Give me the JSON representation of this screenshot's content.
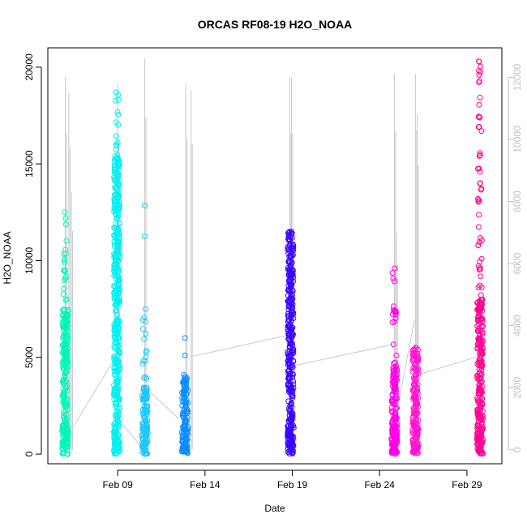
{
  "chart_data": {
    "type": "scatter",
    "title": "ORCAS RF08-19 H2O_NOAA",
    "xlabel": "Date",
    "ylabel": "H2O_NOAA",
    "xlim": [
      "2016-02-05",
      "2016-03-02"
    ],
    "ylim": [
      -500,
      21000
    ],
    "y_right_lim": [
      -450,
      12950
    ],
    "x_ticks": [
      {
        "date": "2016-02-09",
        "label": "Feb 09"
      },
      {
        "date": "2016-02-14",
        "label": "Feb 14"
      },
      {
        "date": "2016-02-19",
        "label": "Feb 19"
      },
      {
        "date": "2016-02-24",
        "label": "Feb 24"
      },
      {
        "date": "2016-02-29",
        "label": "Feb 29"
      }
    ],
    "y_ticks": [
      0,
      5000,
      10000,
      15000,
      20000
    ],
    "y_right_ticks": [
      0,
      2000,
      4000,
      6000,
      8000,
      10000,
      12000
    ],
    "grid": false,
    "series": [
      {
        "date": "2016-02-06",
        "color": "#00F5B8",
        "min": 0,
        "max": 12500,
        "dense_max": 7500,
        "extra": []
      },
      {
        "date": "2016-02-08.95",
        "color": "#00F0F0",
        "min": 0,
        "max": 18700,
        "dense_max": 15500,
        "extra": []
      },
      {
        "date": "2016-02-10.55",
        "color": "#1AC8FF",
        "min": 0,
        "max": 7500,
        "dense_max": 3500,
        "extra": [
          12850,
          11250
        ]
      },
      {
        "date": "2016-02-12.85",
        "color": "#0A8CFF",
        "min": 0,
        "max": 4100,
        "dense_max": 4100,
        "extra": [
          6000,
          5100
        ]
      },
      {
        "date": "2016-02-18.9",
        "color": "#3A00FF",
        "min": 0,
        "max": 11500,
        "dense_max": 11500,
        "extra": []
      },
      {
        "date": "2016-02-24.85",
        "color": "#FF00E6",
        "min": 0,
        "max": 9600,
        "dense_max": 4500,
        "extra": []
      },
      {
        "date": "2016-02-26.05",
        "color": "#FF14D2",
        "min": 0,
        "max": 5500,
        "dense_max": 5500,
        "extra": []
      },
      {
        "date": "2016-02-29.75",
        "color": "#FF0090",
        "min": 0,
        "max": 20300,
        "dense_max": 8000,
        "extra": []
      }
    ],
    "secondary_line": {
      "color": "#c8c8c8",
      "spikes": [
        {
          "date": "2016-02-06",
          "peak": 12000
        },
        {
          "date": "2016-02-06.2",
          "peak": 11500
        },
        {
          "date": "2016-02-06.35",
          "peak": 8300
        },
        {
          "date": "2016-02-09",
          "peak": 11800
        },
        {
          "date": "2016-02-10.55",
          "peak": 12600
        },
        {
          "date": "2016-02-12.9",
          "peak": 11800
        },
        {
          "date": "2016-02-13.2",
          "peak": 11600
        },
        {
          "date": "2016-02-18.85",
          "peak": 12000
        },
        {
          "date": "2016-02-18.95",
          "peak": 12000
        },
        {
          "date": "2016-02-24.85",
          "peak": 12100
        },
        {
          "date": "2016-02-24.95",
          "peak": 7000
        },
        {
          "date": "2016-02-26.05",
          "peak": 12100
        },
        {
          "date": "2016-02-26.15",
          "peak": 10800
        }
      ],
      "connectors": [
        [
          [
            "2016-02-06.4",
            700
          ],
          [
            "2016-02-08.9",
            3000
          ]
        ],
        [
          [
            "2016-02-09.0",
            1000
          ],
          [
            "2016-02-10.5",
            0
          ]
        ],
        [
          [
            "2016-02-10.6",
            2000
          ],
          [
            "2016-02-12.5",
            1000
          ]
        ],
        [
          [
            "2016-02-13.2",
            3000
          ],
          [
            "2016-02-18.8",
            3700
          ]
        ],
        [
          [
            "2016-02-19.0",
            2700
          ],
          [
            "2016-02-24.8",
            3400
          ]
        ],
        [
          [
            "2016-02-24.9",
            1000
          ],
          [
            "2016-02-26.0",
            4200
          ]
        ],
        [
          [
            "2016-02-26.1",
            2400
          ],
          [
            "2016-02-29.6",
            3000
          ]
        ]
      ]
    }
  }
}
